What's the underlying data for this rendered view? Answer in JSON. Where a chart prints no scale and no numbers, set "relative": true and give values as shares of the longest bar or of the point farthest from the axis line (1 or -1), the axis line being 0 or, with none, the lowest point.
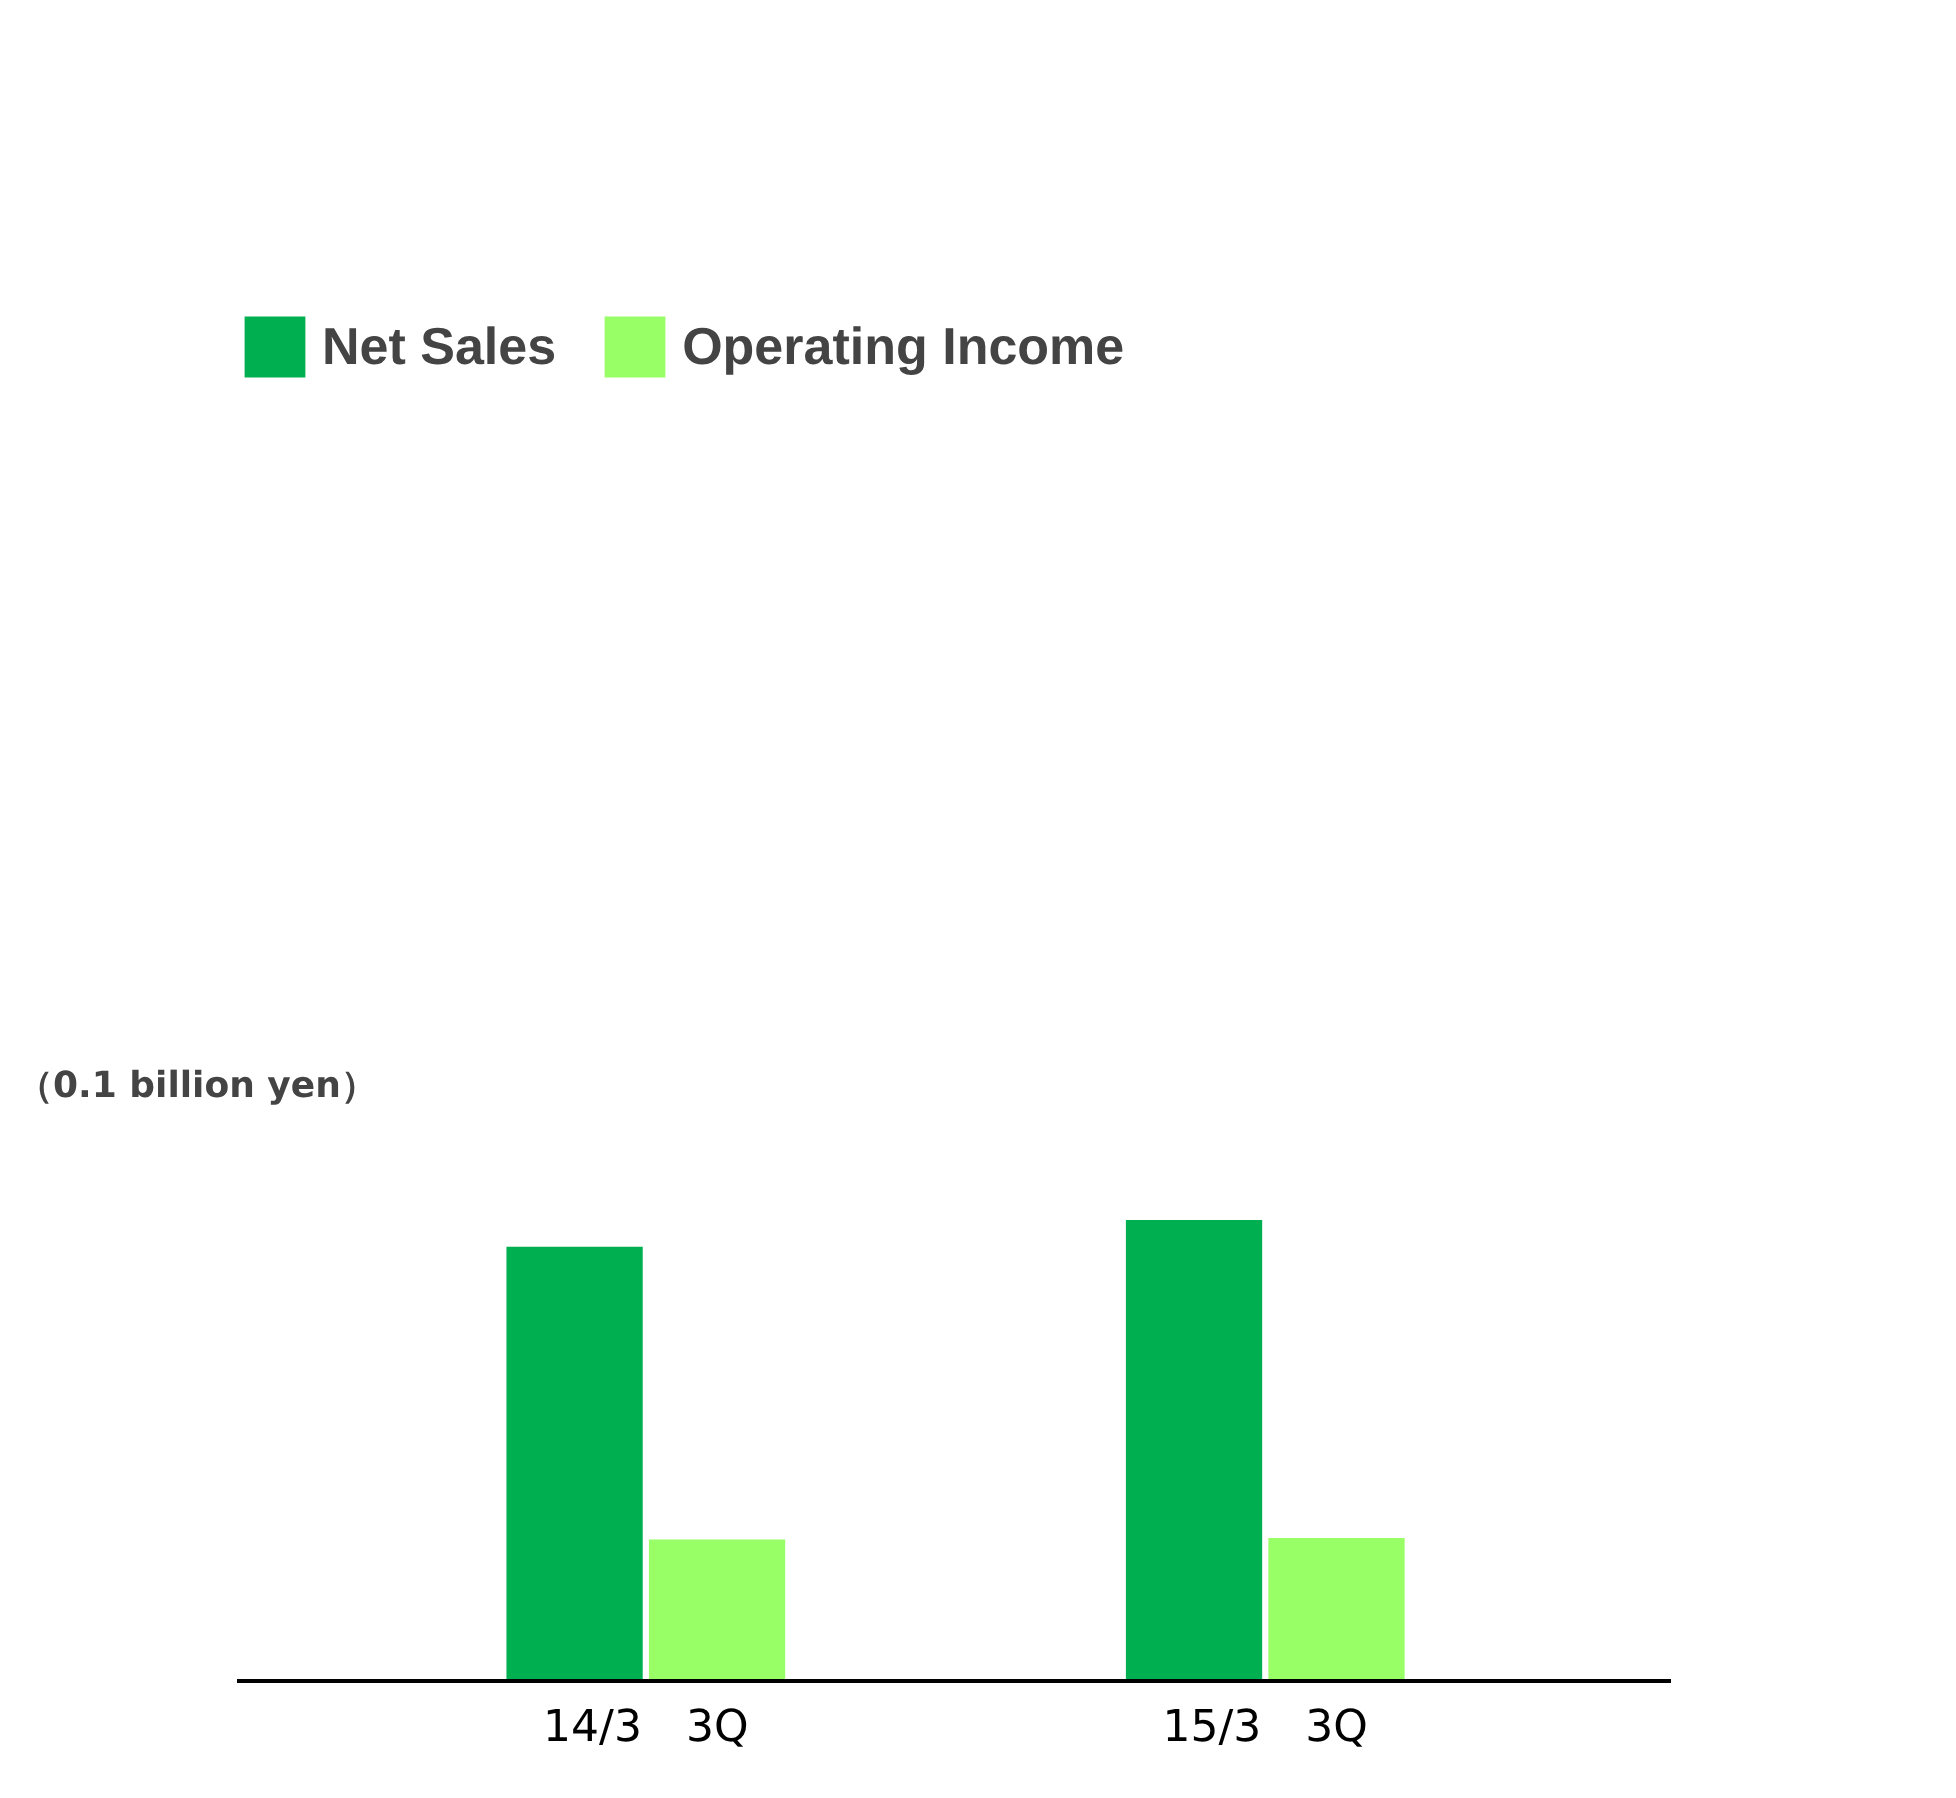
{
  "chart_data": {
    "type": "bar",
    "relative": true,
    "ylabel": "（0.1 billion yen）",
    "categories": [
      "14/3　3Q",
      "15/3　3Q"
    ],
    "series": [
      {
        "name": "Net Sales",
        "color": "#00b050",
        "values": [
          0.942,
          1
        ]
      },
      {
        "name": "Operating Income",
        "color": "#99ff66",
        "values": [
          0.307,
          0.31
        ]
      }
    ],
    "legend": "top left",
    "grid": false
  }
}
